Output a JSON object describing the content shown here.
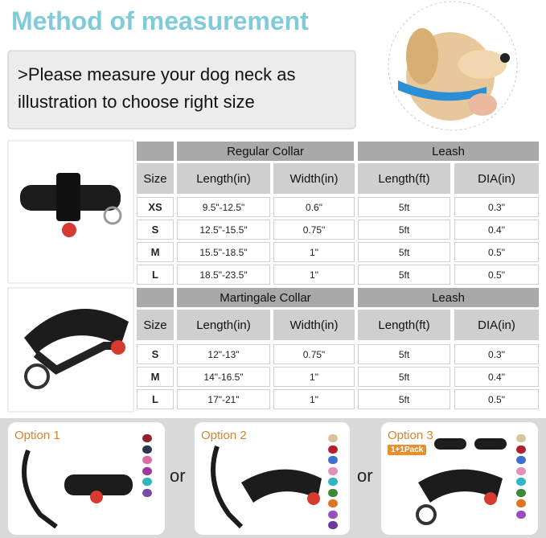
{
  "header": {
    "title": "Method of measurement"
  },
  "instruction": {
    "lines": [
      ">Please measure your dog neck as",
      "illustration to choose right size"
    ]
  },
  "tables": [
    {
      "groups": [
        "Regular Collar",
        "Leash"
      ],
      "columns": [
        "Size",
        "Length(in)",
        "Width(in)",
        "Length(ft)",
        "DIA(in)"
      ],
      "rows": [
        [
          "XS",
          "9.5\"-12.5\"",
          "0.6\"",
          "5ft",
          "0.3\""
        ],
        [
          "S",
          "12.5\"-15.5\"",
          "0.75\"",
          "5ft",
          "0.4\""
        ],
        [
          "M",
          "15.5\"-18.5\"",
          "1\"",
          "5ft",
          "0.5\""
        ],
        [
          "L",
          "18.5\"-23.5\"",
          "1\"",
          "5ft",
          "0.5\""
        ]
      ]
    },
    {
      "groups": [
        "Martingale Collar",
        "Leash"
      ],
      "columns": [
        "Size",
        "Length(in)",
        "Width(in)",
        "Length(ft)",
        "DIA(in)"
      ],
      "rows": [
        [
          "S",
          "12\"-13\"",
          "0.75\"",
          "5ft",
          "0.3\""
        ],
        [
          "M",
          "14\"-16.5\"",
          "1\"",
          "5ft",
          "0.4\""
        ],
        [
          "L",
          "17\"-21\"",
          "1\"",
          "5ft",
          "0.5\""
        ]
      ]
    }
  ],
  "options": [
    {
      "label": "Option 1",
      "swatch_colors": [
        "#8e2330",
        "#2a3550",
        "#e06aa8",
        "#a0379c",
        "#2fb6b8",
        "#7b4aa6"
      ]
    },
    {
      "label": "Option 2",
      "swatch_colors": [
        "#d8c49a",
        "#b3202c",
        "#3d6fd1",
        "#e38fb7",
        "#2eb6c4",
        "#3a8a3a",
        "#e2721f",
        "#9a4cc0",
        "#6b3aa0"
      ]
    },
    {
      "label": "Option 3",
      "badge": "1+1Pack",
      "swatch_colors": [
        "#d8c49a",
        "#b3202c",
        "#3d6fd1",
        "#e38fb7",
        "#2eb6c4",
        "#3a8a3a",
        "#e2721f",
        "#9a4cc0"
      ]
    }
  ],
  "separators": [
    "or",
    "or"
  ]
}
